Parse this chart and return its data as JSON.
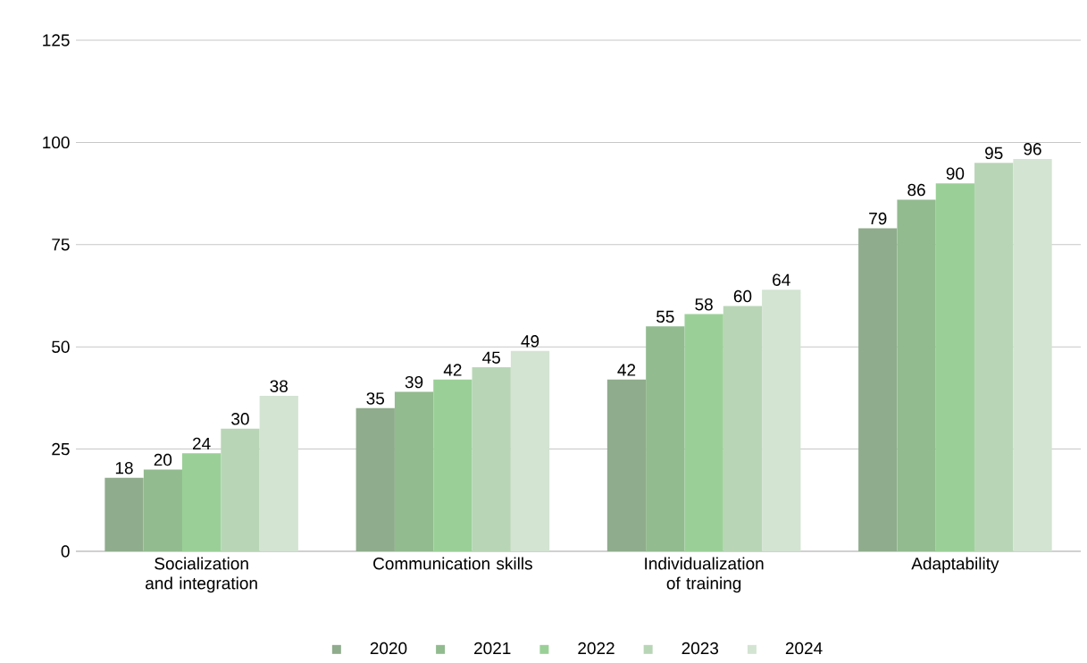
{
  "chart_data": {
    "type": "bar",
    "categories": [
      "Socialization and integration",
      "Communication skills",
      "Individualization of training",
      "Adaptability"
    ],
    "series": [
      {
        "name": "2020",
        "color": "#8fac8c",
        "values": [
          18,
          35,
          42,
          79
        ]
      },
      {
        "name": "2021",
        "color": "#92bb8f",
        "values": [
          20,
          39,
          55,
          86
        ]
      },
      {
        "name": "2022",
        "color": "#9ad097",
        "values": [
          24,
          42,
          58,
          90
        ]
      },
      {
        "name": "2023",
        "color": "#b8d6b6",
        "values": [
          30,
          45,
          60,
          95
        ]
      },
      {
        "name": "2024",
        "color": "#d3e4d2",
        "values": [
          38,
          49,
          64,
          96
        ]
      }
    ],
    "ylim": [
      0,
      125
    ],
    "yticks": [
      0,
      25,
      50,
      75,
      100,
      125
    ],
    "grid": "y",
    "legend": "bottom",
    "data_labels": true
  }
}
